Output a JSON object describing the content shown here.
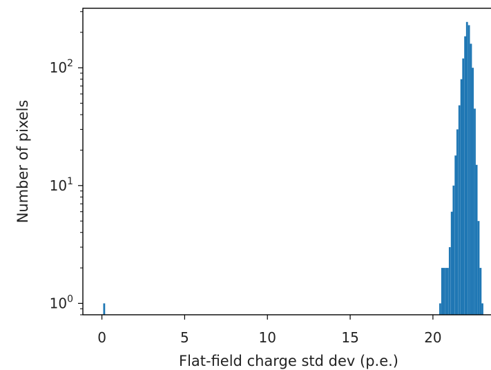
{
  "chart_data": {
    "type": "bar",
    "title": "",
    "xlabel": "Flat-field charge std dev (p.e.)",
    "ylabel": "Number of pixels",
    "x_ticks": [
      {
        "value": 0,
        "label": "0"
      },
      {
        "value": 5,
        "label": "5"
      },
      {
        "value": 10,
        "label": "10"
      },
      {
        "value": 15,
        "label": "15"
      },
      {
        "value": 20,
        "label": "20"
      }
    ],
    "y_ticks": [
      {
        "value": 1,
        "base": "10",
        "exp": "0"
      },
      {
        "value": 10,
        "base": "10",
        "exp": "1"
      },
      {
        "value": 100,
        "base": "10",
        "exp": "2"
      }
    ],
    "xlim": [
      -1.15,
      23.55
    ],
    "ylim": [
      0.8,
      320
    ],
    "y_scale": "log",
    "grid": false,
    "bar_color": "#1f77b4",
    "bin_width": 0.116,
    "bins": [
      {
        "x": 0.08,
        "y": 1
      },
      {
        "x": 20.38,
        "y": 1
      },
      {
        "x": 20.5,
        "y": 2
      },
      {
        "x": 20.61,
        "y": 2
      },
      {
        "x": 20.73,
        "y": 2
      },
      {
        "x": 20.84,
        "y": 2
      },
      {
        "x": 20.96,
        "y": 3
      },
      {
        "x": 21.08,
        "y": 6
      },
      {
        "x": 21.19,
        "y": 10
      },
      {
        "x": 21.31,
        "y": 18
      },
      {
        "x": 21.42,
        "y": 30
      },
      {
        "x": 21.54,
        "y": 48
      },
      {
        "x": 21.66,
        "y": 80
      },
      {
        "x": 21.77,
        "y": 120
      },
      {
        "x": 21.89,
        "y": 185
      },
      {
        "x": 22.0,
        "y": 245
      },
      {
        "x": 22.12,
        "y": 230
      },
      {
        "x": 22.24,
        "y": 160
      },
      {
        "x": 22.35,
        "y": 100
      },
      {
        "x": 22.47,
        "y": 45
      },
      {
        "x": 22.58,
        "y": 15
      },
      {
        "x": 22.7,
        "y": 5
      },
      {
        "x": 22.82,
        "y": 2
      },
      {
        "x": 22.93,
        "y": 1
      }
    ]
  }
}
